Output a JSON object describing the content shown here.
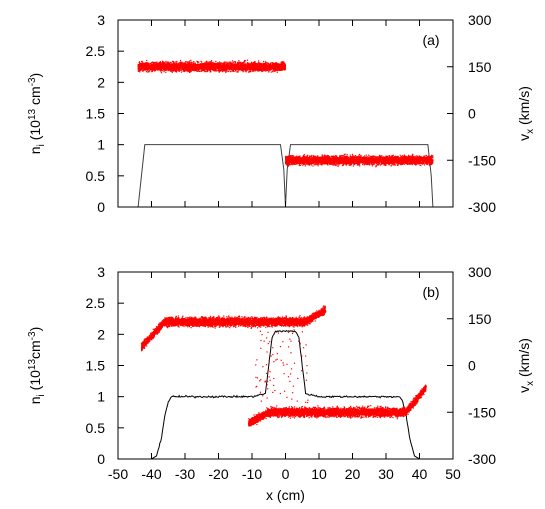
{
  "chart_data": [
    {
      "type": "scatter",
      "panel_label": "(a)",
      "xlim": [
        -50,
        50
      ],
      "ylim": [
        0,
        3
      ],
      "y2lim": [
        -300,
        300
      ],
      "xticks": [],
      "yticks": [
        "0",
        "0.5",
        "1",
        "1.5",
        "2",
        "2.5",
        "3"
      ],
      "y2ticks": [
        "-300",
        "-150",
        "0",
        "150",
        "300"
      ],
      "ylabel": {
        "base": "n",
        "sub": "i",
        "pre": " (10",
        "sup1": "13",
        "mid": " cm",
        "sup2": "-3",
        "post": ")"
      },
      "y2label": {
        "base": "v",
        "sub": "x",
        "post": " (km/s)"
      },
      "series": [
        {
          "kind": "density_line",
          "axis": "left",
          "color": "#404040",
          "x": [
            -45.0,
            -44.0,
            -43.0,
            -42.0,
            -40.0,
            -20.0,
            -1.5,
            -0.5,
            0.0,
            0.5,
            1.5,
            30.0,
            42.5,
            43.5,
            44.0,
            45.0
          ],
          "y": [
            0,
            0,
            0.5,
            1.0,
            1.0,
            1.0,
            1.0,
            0.6,
            0,
            0.6,
            1.0,
            1.0,
            1.0,
            0.5,
            0,
            0
          ]
        },
        {
          "kind": "velocity_scatter",
          "axis": "right",
          "color": "#ff0000",
          "segments": [
            {
              "x": [
                -44.0,
                0.0
              ],
              "v": [
                150,
                150
              ],
              "spread": 14
            },
            {
              "x": [
                0.0,
                44.0
              ],
              "v": [
                -150,
                -150
              ],
              "spread": 14
            }
          ]
        }
      ]
    },
    {
      "type": "scatter",
      "panel_label": "(b)",
      "xlim": [
        -50,
        50
      ],
      "ylim": [
        0,
        3
      ],
      "y2lim": [
        -300,
        300
      ],
      "xticks": [
        "-50",
        "-40",
        "-30",
        "-20",
        "-10",
        "0",
        "10",
        "20",
        "30",
        "40",
        "50"
      ],
      "yticks": [
        "0",
        "0.5",
        "1",
        "1.5",
        "2",
        "2.5",
        "3"
      ],
      "y2ticks": [
        "-300",
        "-150",
        "0",
        "150",
        "300"
      ],
      "xlabel": "x (cm)",
      "ylabel": {
        "base": "n",
        "sub": "i",
        "pre": " (10",
        "sup1": "13",
        "mid": "cm",
        "sup2": "-3",
        "post": ")"
      },
      "y2label": {
        "base": "v",
        "sub": "x",
        "post": " (km/s)"
      },
      "series": [
        {
          "kind": "density_line",
          "axis": "left",
          "color": "#000000",
          "x": [
            -40.0,
            -38.5,
            -37.0,
            -36.0,
            -35.0,
            -34.0,
            -30.0,
            -20.0,
            -10.0,
            -6.0,
            -5.0,
            -4.0,
            -3.0,
            0.0,
            3.0,
            4.0,
            5.0,
            6.0,
            10.0,
            20.0,
            30.0,
            34.0,
            35.0,
            36.0,
            37.0,
            38.5,
            40.0
          ],
          "y": [
            0,
            0.05,
            0.35,
            0.7,
            0.92,
            1.0,
            1.0,
            1.0,
            1.0,
            1.05,
            1.5,
            1.95,
            2.05,
            2.05,
            2.05,
            1.95,
            1.5,
            1.05,
            1.0,
            1.0,
            1.0,
            1.0,
            0.92,
            0.7,
            0.35,
            0.05,
            0
          ]
        },
        {
          "kind": "velocity_scatter",
          "axis": "right",
          "color": "#ff0000",
          "segments": [
            {
              "x": [
                -43.0,
                -36.0
              ],
              "v": [
                60,
                140
              ],
              "spread": 12
            },
            {
              "x": [
                -36.0,
                6.0
              ],
              "v": [
                140,
                140
              ],
              "spread": 14
            },
            {
              "x": [
                6.0,
                12.0
              ],
              "v": [
                140,
                180
              ],
              "spread": 12
            },
            {
              "x": [
                -11.0,
                -5.0
              ],
              "v": [
                -185,
                -150
              ],
              "spread": 12
            },
            {
              "x": [
                -5.0,
                36.0
              ],
              "v": [
                -150,
                -150
              ],
              "spread": 14
            },
            {
              "x": [
                36.0,
                42.0
              ],
              "v": [
                -150,
                -70
              ],
              "spread": 12
            }
          ]
        }
      ]
    }
  ]
}
